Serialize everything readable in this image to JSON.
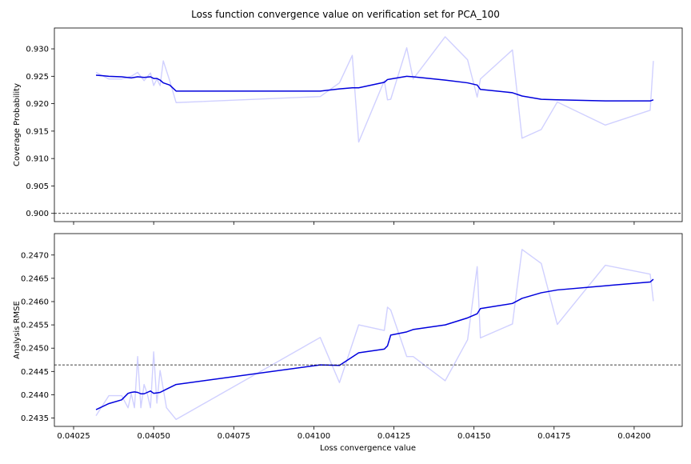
{
  "chart_data": {
    "title": "Loss function convergence value on verification set for PCA_100",
    "type": "line",
    "xlabel": "Loss convergence value",
    "xlim": [
      0.04019,
      0.04215
    ],
    "xticks": [
      0.04025,
      0.0405,
      0.04075,
      0.041,
      0.04125,
      0.0415,
      0.04175,
      0.042
    ],
    "xtick_labels": [
      "0.04025",
      "0.04050",
      "0.04075",
      "0.04100",
      "0.04125",
      "0.04150",
      "0.04175",
      "0.04200"
    ],
    "colors": {
      "raw": "#d0d0ff",
      "smooth": "#0000dd",
      "reference": "#000000"
    },
    "panels": [
      {
        "ylabel": "Coverage Probability",
        "ylim": [
          0.8985,
          0.9338
        ],
        "yticks": [
          0.9,
          0.905,
          0.91,
          0.915,
          0.92,
          0.925,
          0.93
        ],
        "ytick_labels": [
          "0.900",
          "0.905",
          "0.910",
          "0.915",
          "0.920",
          "0.925",
          "0.930"
        ],
        "reference_line": 0.9,
        "series": [
          {
            "role": "raw",
            "x": [
              0.04032,
              0.04036,
              0.0404,
              0.04043,
              0.04045,
              0.04047,
              0.04049,
              0.0405,
              0.04051,
              0.04052,
              0.04053,
              0.04055,
              0.04057,
              0.04102,
              0.04108,
              0.04112,
              0.04114,
              0.04122,
              0.04123,
              0.04124,
              0.04129,
              0.04131,
              0.04141,
              0.04148,
              0.04151,
              0.04152,
              0.04162,
              0.04165,
              0.04171,
              0.04176,
              0.04191,
              0.04205,
              0.04206
            ],
            "y": [
              0.9257,
              0.9245,
              0.9245,
              0.925,
              0.9257,
              0.9242,
              0.9256,
              0.9233,
              0.9245,
              0.9233,
              0.9278,
              0.9242,
              0.9202,
              0.9213,
              0.9238,
              0.9288,
              0.913,
              0.9242,
              0.9207,
              0.9208,
              0.9302,
              0.9245,
              0.9322,
              0.928,
              0.9212,
              0.9245,
              0.9298,
              0.9137,
              0.9153,
              0.9203,
              0.9161,
              0.9188,
              0.9278
            ]
          },
          {
            "role": "smooth",
            "x": [
              0.04032,
              0.04036,
              0.0404,
              0.04043,
              0.04045,
              0.04047,
              0.04049,
              0.0405,
              0.04051,
              0.04052,
              0.04053,
              0.04055,
              0.04057,
              0.04102,
              0.04108,
              0.04112,
              0.04114,
              0.04122,
              0.04123,
              0.04124,
              0.04129,
              0.04131,
              0.04141,
              0.04148,
              0.04151,
              0.04152,
              0.04162,
              0.04165,
              0.04171,
              0.04176,
              0.04191,
              0.04205,
              0.04206
            ],
            "y": [
              0.9252,
              0.925,
              0.9249,
              0.9247,
              0.9249,
              0.9248,
              0.9249,
              0.9246,
              0.9246,
              0.9243,
              0.9238,
              0.9234,
              0.9223,
              0.9223,
              0.9227,
              0.9229,
              0.9229,
              0.9239,
              0.9244,
              0.9245,
              0.925,
              0.9249,
              0.9243,
              0.9238,
              0.9234,
              0.9226,
              0.922,
              0.9214,
              0.9208,
              0.9207,
              0.9205,
              0.9205,
              0.9207
            ]
          }
        ]
      },
      {
        "ylabel": "Analysis RMSE",
        "ylim": [
          0.24332,
          0.24746
        ],
        "yticks": [
          0.2435,
          0.244,
          0.2445,
          0.245,
          0.2455,
          0.246,
          0.2465,
          0.247
        ],
        "ytick_labels": [
          "0.2435",
          "0.2440",
          "0.2445",
          "0.2450",
          "0.2455",
          "0.2460",
          "0.2465",
          "0.2470"
        ],
        "reference_line": 0.24464,
        "series": [
          {
            "role": "raw",
            "x": [
              0.04032,
              0.04036,
              0.0404,
              0.04042,
              0.04043,
              0.04044,
              0.04045,
              0.04046,
              0.04047,
              0.04048,
              0.04049,
              0.0405,
              0.04051,
              0.04052,
              0.04054,
              0.04057,
              0.04102,
              0.04108,
              0.04114,
              0.04122,
              0.04123,
              0.04124,
              0.04129,
              0.04131,
              0.04141,
              0.04148,
              0.04151,
              0.04152,
              0.04162,
              0.04165,
              0.04171,
              0.04176,
              0.04191,
              0.04205,
              0.04206
            ],
            "y": [
              0.24355,
              0.24398,
              0.24398,
              0.24372,
              0.24402,
              0.24372,
              0.24482,
              0.24372,
              0.24422,
              0.24402,
              0.24372,
              0.24492,
              0.24382,
              0.24452,
              0.24372,
              0.24347,
              0.24523,
              0.24426,
              0.2455,
              0.24538,
              0.24588,
              0.24582,
              0.24482,
              0.24482,
              0.2443,
              0.24518,
              0.24675,
              0.24522,
              0.24552,
              0.24712,
              0.24682,
              0.24551,
              0.24678,
              0.24659,
              0.24601
            ]
          },
          {
            "role": "smooth",
            "x": [
              0.04032,
              0.04036,
              0.0404,
              0.04042,
              0.04043,
              0.04044,
              0.04045,
              0.04046,
              0.04047,
              0.04048,
              0.04049,
              0.0405,
              0.04051,
              0.04052,
              0.04054,
              0.04057,
              0.04102,
              0.04108,
              0.04114,
              0.04122,
              0.04123,
              0.04124,
              0.04129,
              0.04131,
              0.04141,
              0.04148,
              0.04151,
              0.04152,
              0.04162,
              0.04165,
              0.04171,
              0.04176,
              0.04191,
              0.04205,
              0.04206
            ],
            "y": [
              0.24368,
              0.24381,
              0.24389,
              0.24403,
              0.24405,
              0.24406,
              0.24405,
              0.24402,
              0.24402,
              0.24405,
              0.24408,
              0.24403,
              0.24404,
              0.24405,
              0.24412,
              0.24422,
              0.24464,
              0.24463,
              0.2449,
              0.24498,
              0.24505,
              0.24528,
              0.24535,
              0.2454,
              0.2455,
              0.24565,
              0.24574,
              0.24585,
              0.24596,
              0.24607,
              0.24619,
              0.24625,
              0.24634,
              0.24642,
              0.24648
            ]
          }
        ]
      }
    ]
  }
}
